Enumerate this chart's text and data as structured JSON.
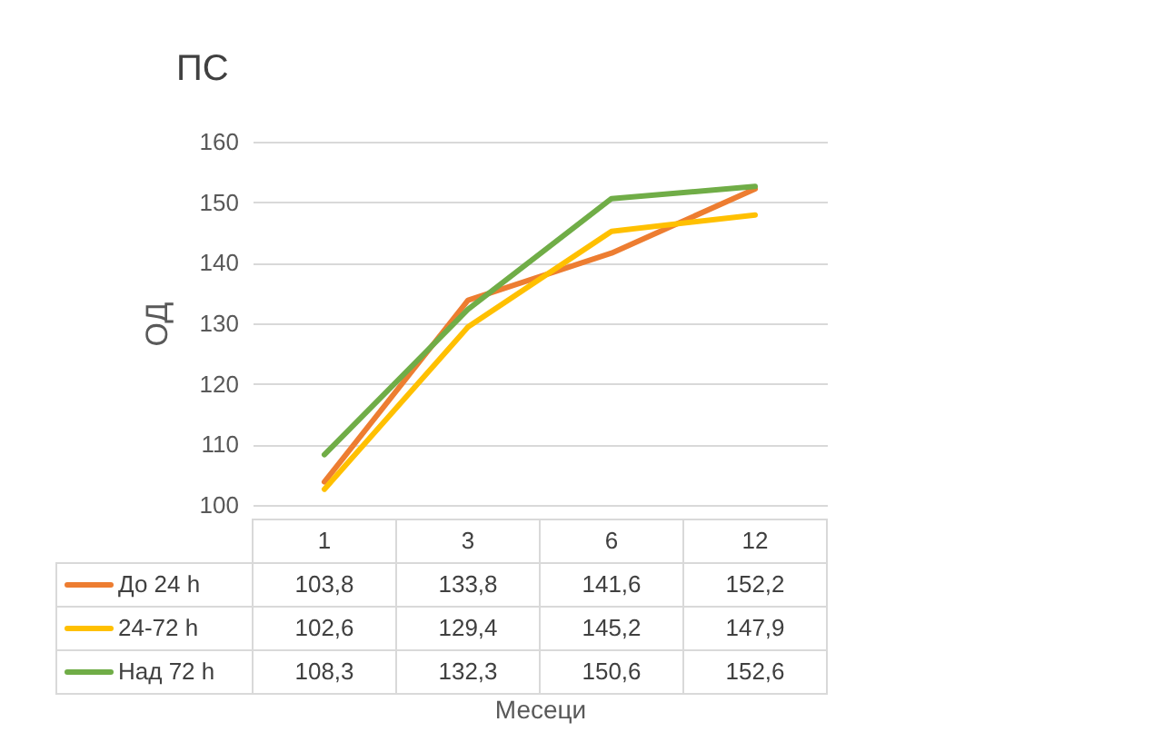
{
  "chart_data": {
    "type": "line",
    "title": "ПС",
    "annotations": [
      "Месеци"
    ],
    "ylabel": "ОД",
    "categories": [
      "1",
      "3",
      "6",
      "12"
    ],
    "series": [
      {
        "name": "До 24 h",
        "color": "#ed7d31",
        "values": [
          103.8,
          133.8,
          141.6,
          152.2
        ],
        "value_labels": [
          "103,8",
          "133,8",
          "141,6",
          "152,2"
        ]
      },
      {
        "name": "24-72 h",
        "color": "#ffc000",
        "values": [
          102.6,
          129.4,
          145.2,
          147.9
        ],
        "value_labels": [
          "102,6",
          "129,4",
          "145,2",
          "147,9"
        ]
      },
      {
        "name": "Над 72 h",
        "color": "#70ad47",
        "values": [
          108.3,
          132.3,
          150.6,
          152.6
        ],
        "value_labels": [
          "108,3",
          "132,3",
          "150,6",
          "152,6"
        ]
      }
    ],
    "ylim": [
      100,
      160
    ],
    "yticks": [
      100,
      110,
      120,
      130,
      140,
      150,
      160
    ],
    "grid": "y",
    "legend": "bottom"
  }
}
